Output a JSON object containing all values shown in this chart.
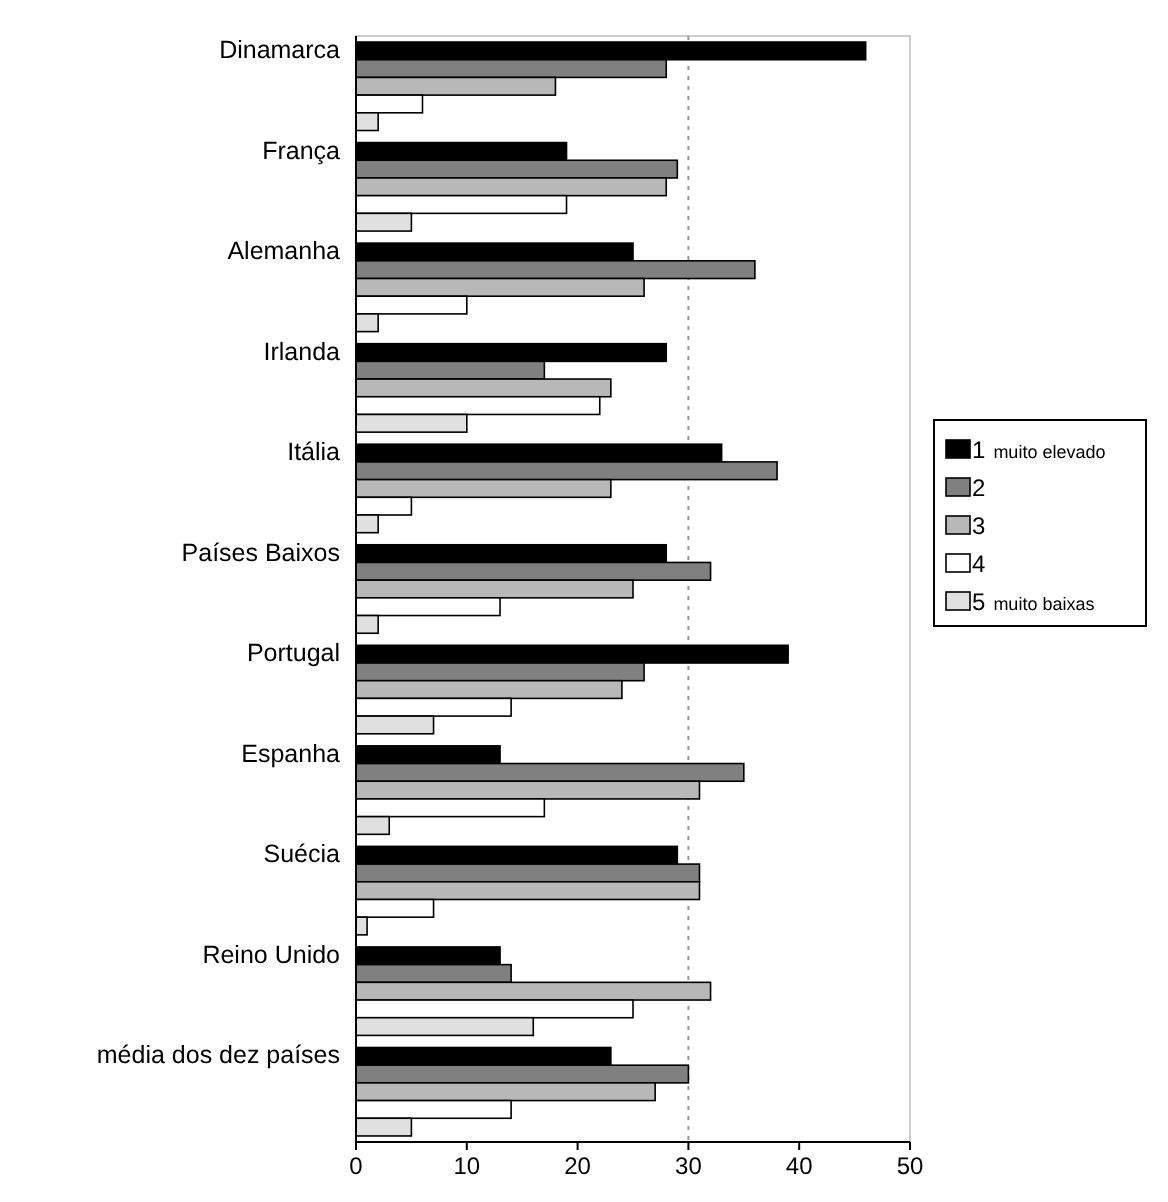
{
  "chart_data": {
    "type": "bar",
    "orientation": "horizontal",
    "categories": [
      "Dinamarca",
      "França",
      "Alemanha",
      "Irlanda",
      "Itália",
      "Países Baixos",
      "Portugal",
      "Espanha",
      "Suécia",
      "Reino Unido",
      "média dos dez países"
    ],
    "series": [
      {
        "name": "1 muito elevado",
        "color": "#000000",
        "values": [
          46,
          19,
          25,
          28,
          33,
          28,
          39,
          13,
          29,
          13,
          23
        ]
      },
      {
        "name": "2",
        "color": "#808080",
        "values": [
          28,
          29,
          36,
          17,
          38,
          32,
          26,
          35,
          31,
          14,
          30
        ]
      },
      {
        "name": "3",
        "color": "#b8b8b8",
        "values": [
          18,
          28,
          26,
          23,
          23,
          25,
          24,
          31,
          31,
          32,
          27
        ]
      },
      {
        "name": "4",
        "color": "#ffffff",
        "values": [
          6,
          19,
          10,
          22,
          5,
          13,
          14,
          17,
          7,
          25,
          14
        ]
      },
      {
        "name": "5 muito baixas",
        "color": "#e0e0e0",
        "values": [
          2,
          5,
          2,
          10,
          2,
          2,
          7,
          3,
          1,
          16,
          5
        ]
      }
    ],
    "xlim": [
      0,
      50
    ],
    "xticks": [
      0,
      10,
      20,
      30,
      40,
      50
    ],
    "ref_lines": [
      {
        "axis": "x",
        "value": 30,
        "line_style": "dotted",
        "color": "#999999"
      }
    ],
    "legend": "right"
  }
}
